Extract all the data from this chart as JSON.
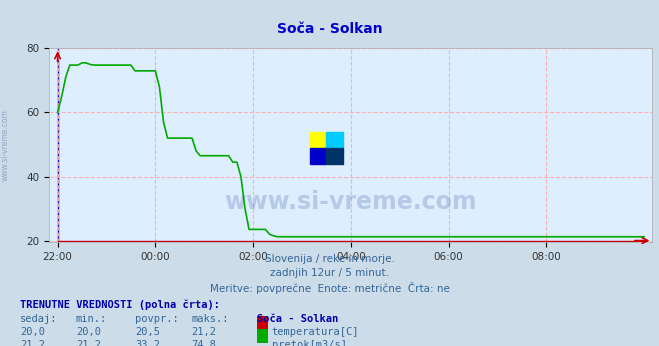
{
  "title": "Soča - Solkan",
  "bg_color": "#ccdce8",
  "plot_bg_color": "#ddeeff",
  "grid_color": "#ffaaaa",
  "temp_color": "#cc0000",
  "flow_color": "#00aa00",
  "blue_line_color": "#0000cc",
  "xlim": [
    -2,
    146
  ],
  "ylim": [
    19.5,
    80
  ],
  "yticks": [
    20,
    40,
    60,
    80
  ],
  "xtick_labels": [
    "22:00",
    "00:00",
    "02:00",
    "04:00",
    "06:00",
    "08:00"
  ],
  "xtick_positions": [
    0,
    24,
    48,
    72,
    96,
    120
  ],
  "title_color": "#0000cc",
  "watermark_text": "www.si-vreme.com",
  "watermark_color": "#1a3a8a",
  "side_text": "www.si-vreme.com",
  "subtitle1": "Slovenija / reke in morje.",
  "subtitle2": "zadnjih 12ur / 5 minut.",
  "subtitle3": "Meritve: povprečne  Enote: metrične  Črta: ne",
  "footer_title": "TRENUTNE VREDNOSTI (polna črta):",
  "col_headers": [
    "sedaj:",
    "min.:",
    "povpr.:",
    "maks.:",
    "Soča - Solkan"
  ],
  "temp_row": [
    "20,0",
    "20,0",
    "20,5",
    "21,2",
    "temperatura[C]"
  ],
  "flow_row": [
    "21,2",
    "21,2",
    "33,2",
    "74,8",
    "pretok[m3/s]"
  ],
  "text_color": "#336699",
  "header_color": "#0000aa"
}
